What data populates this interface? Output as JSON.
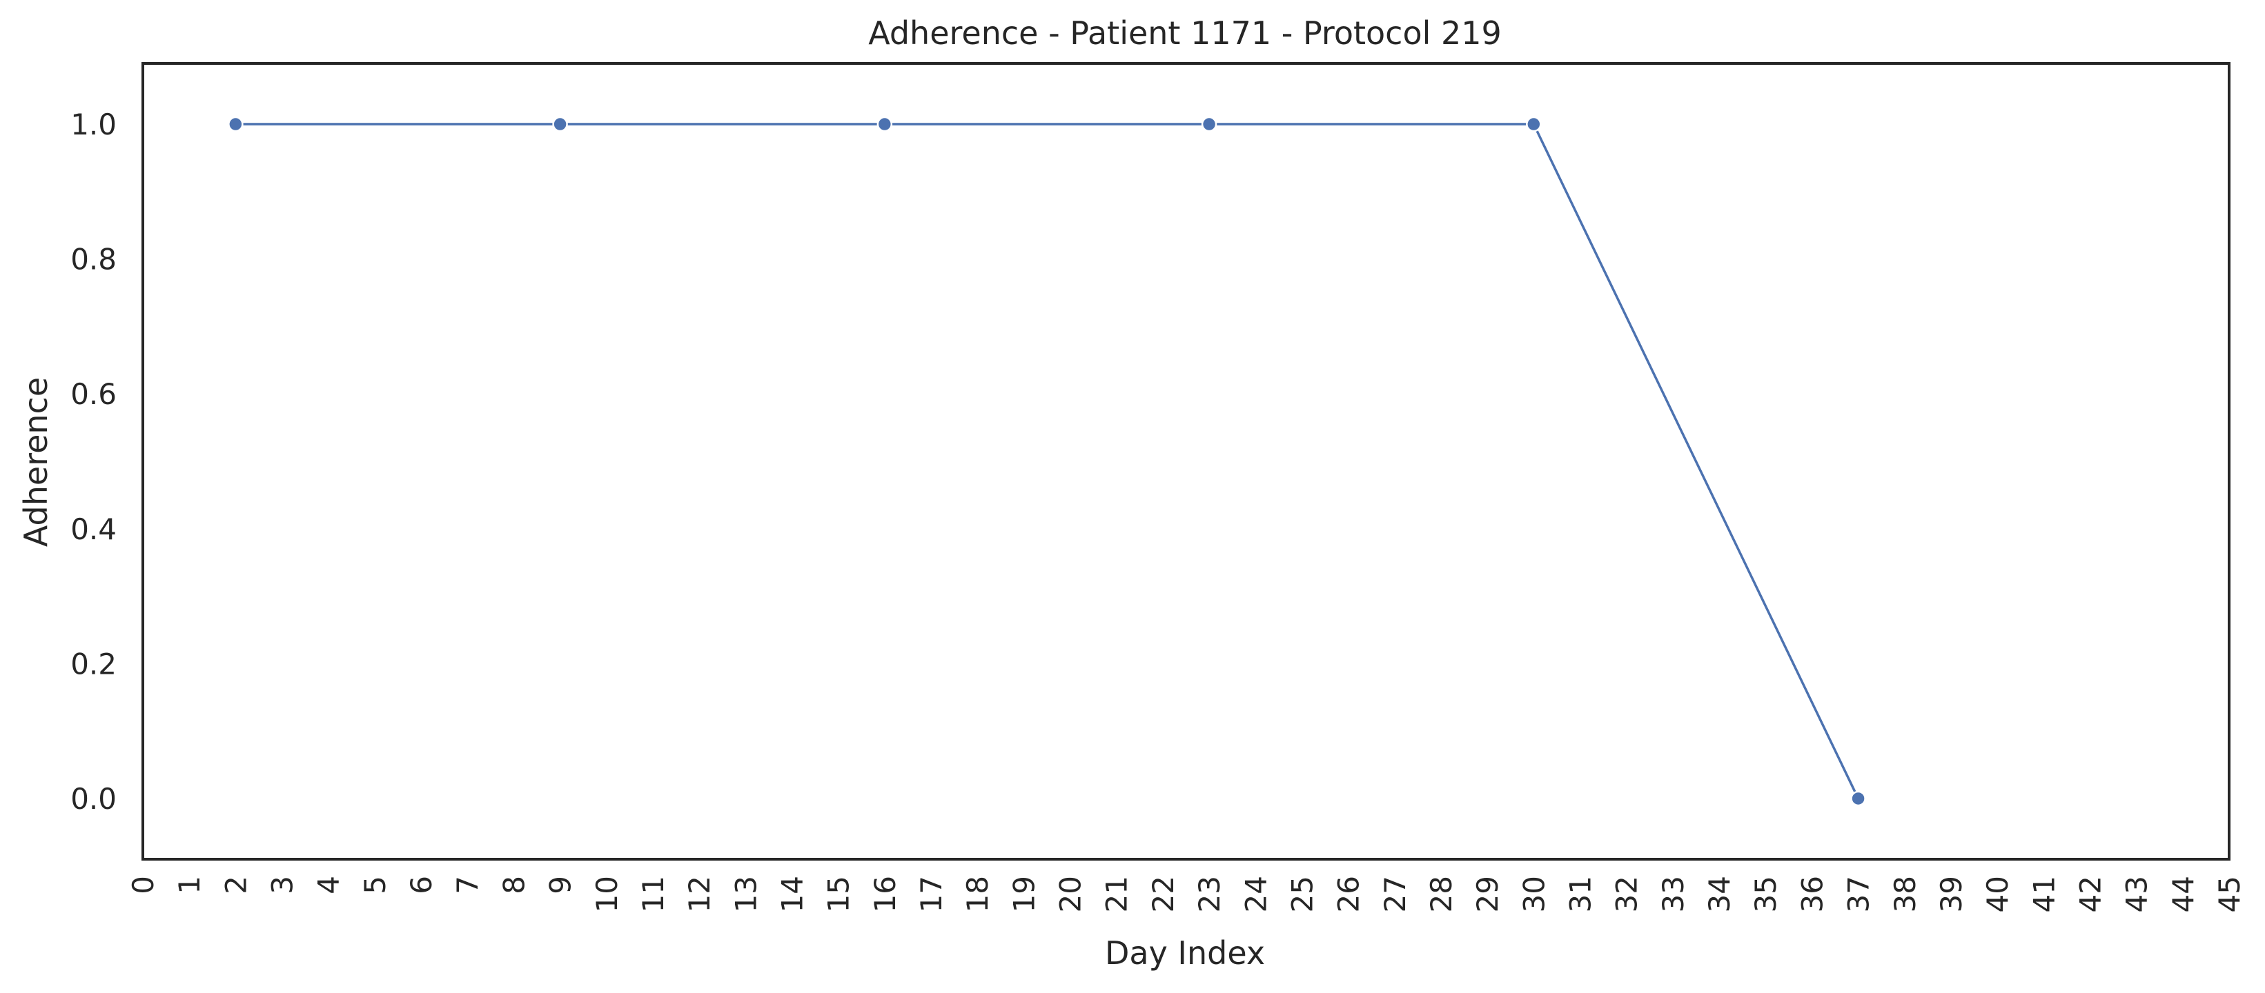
{
  "chart_data": {
    "type": "line",
    "title": "Adherence - Patient 1171 - Protocol 219",
    "xlabel": "Day Index",
    "ylabel": "Adherence",
    "xlim": [
      0,
      45
    ],
    "ylim": [
      -0.09,
      1.09
    ],
    "xticks": [
      0,
      1,
      2,
      3,
      4,
      5,
      6,
      7,
      8,
      9,
      10,
      11,
      12,
      13,
      14,
      15,
      16,
      17,
      18,
      19,
      20,
      21,
      22,
      23,
      24,
      25,
      26,
      27,
      28,
      29,
      30,
      31,
      32,
      33,
      34,
      35,
      36,
      37,
      38,
      39,
      40,
      41,
      42,
      43,
      44,
      45
    ],
    "yticks": [
      0.0,
      0.2,
      0.4,
      0.6,
      0.8,
      1.0
    ],
    "grid": false,
    "series": [
      {
        "color": "#4c72b0",
        "x": [
          2,
          9,
          16,
          23,
          30,
          37
        ],
        "y": [
          1.0,
          1.0,
          1.0,
          1.0,
          1.0,
          0.0
        ]
      }
    ]
  }
}
